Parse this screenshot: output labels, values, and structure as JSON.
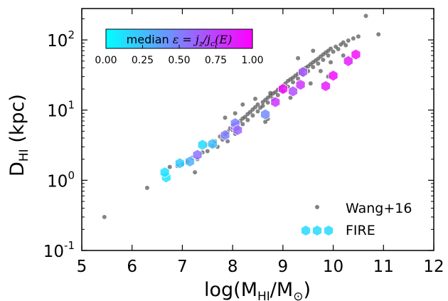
{
  "chart_data": {
    "type": "scatter",
    "xlabel": "log(M",
    "xlabel_sub": "HI",
    "xlabel_mid": "/M",
    "xlabel_sun": "⊙",
    "xlabel_end": ")",
    "ylabel": "D",
    "ylabel_sub": "HI",
    "ylabel_unit": " (kpc)",
    "xlim": [
      5,
      12
    ],
    "ylim": [
      0.1,
      280
    ],
    "yscale": "log",
    "x_ticks": [
      "5",
      "6",
      "7",
      "8",
      "9",
      "10",
      "11",
      "12"
    ],
    "y_ticks": [
      {
        "base": "10",
        "exp": "-1",
        "value": 0.1
      },
      {
        "base": "10",
        "exp": "0",
        "value": 1
      },
      {
        "base": "10",
        "exp": "1",
        "value": 10
      },
      {
        "base": "10",
        "exp": "2",
        "value": 100
      }
    ],
    "grid": false,
    "legend_position": "bottom-right",
    "colorbar": {
      "label_text": "median ",
      "label_math": "ε = j",
      "label_math_sub1": "z",
      "label_math_mid": "/j",
      "label_math_sub2": "c",
      "label_math_end": "(E)",
      "ticks": [
        "0.00",
        "0.25",
        "0.50",
        "0.75",
        "1.00"
      ],
      "range": [
        0,
        1
      ],
      "cmap_start": "#00ffff",
      "cmap_end": "#ff00ff"
    },
    "series": [
      {
        "name": "Wang+16",
        "marker": "circle",
        "color": "#555555",
        "points": [
          [
            5.45,
            0.3
          ],
          [
            6.3,
            0.78
          ],
          [
            6.75,
            1.55
          ],
          [
            6.9,
            1.6
          ],
          [
            7.0,
            1.7
          ],
          [
            7.1,
            1.85
          ],
          [
            7.2,
            2.1
          ],
          [
            7.3,
            2.0
          ],
          [
            7.4,
            2.5
          ],
          [
            7.5,
            2.6
          ],
          [
            7.5,
            3.2
          ],
          [
            7.6,
            3.1
          ],
          [
            7.65,
            3.6
          ],
          [
            7.7,
            3.0
          ],
          [
            7.75,
            4.2
          ],
          [
            7.8,
            3.8
          ],
          [
            7.85,
            4.5
          ],
          [
            7.9,
            4.9
          ],
          [
            7.9,
            3.6
          ],
          [
            7.95,
            5.5
          ],
          [
            8.0,
            5.2
          ],
          [
            8.0,
            6.1
          ],
          [
            8.05,
            4.6
          ],
          [
            8.1,
            6.5
          ],
          [
            8.1,
            5.6
          ],
          [
            8.15,
            7.0
          ],
          [
            8.2,
            6.3
          ],
          [
            8.2,
            7.6
          ],
          [
            8.25,
            8.0
          ],
          [
            8.3,
            7.2
          ],
          [
            8.3,
            8.8
          ],
          [
            8.35,
            9.4
          ],
          [
            8.4,
            8.4
          ],
          [
            8.4,
            10.2
          ],
          [
            8.45,
            11.0
          ],
          [
            8.5,
            9.6
          ],
          [
            8.5,
            12.0
          ],
          [
            8.55,
            10.8
          ],
          [
            8.6,
            13.0
          ],
          [
            8.6,
            11.5
          ],
          [
            8.65,
            14.0
          ],
          [
            8.7,
            12.8
          ],
          [
            8.7,
            15.0
          ],
          [
            8.75,
            16.0
          ],
          [
            8.8,
            14.5
          ],
          [
            8.8,
            17.2
          ],
          [
            8.85,
            18.0
          ],
          [
            8.9,
            16.3
          ],
          [
            8.9,
            19.5
          ],
          [
            8.95,
            21.0
          ],
          [
            9.0,
            18.8
          ],
          [
            9.0,
            22.5
          ],
          [
            9.05,
            24.0
          ],
          [
            9.1,
            21.5
          ],
          [
            9.1,
            26.0
          ],
          [
            9.15,
            27.5
          ],
          [
            9.2,
            25.0
          ],
          [
            9.2,
            29.0
          ],
          [
            9.25,
            31.0
          ],
          [
            9.3,
            28.0
          ],
          [
            9.3,
            33.0
          ],
          [
            9.35,
            35.0
          ],
          [
            9.4,
            32.0
          ],
          [
            9.4,
            37.5
          ],
          [
            9.45,
            40.0
          ],
          [
            9.5,
            36.0
          ],
          [
            9.5,
            42.0
          ],
          [
            9.55,
            45.0
          ],
          [
            9.6,
            41.0
          ],
          [
            9.6,
            48.0
          ],
          [
            9.65,
            51.0
          ],
          [
            9.7,
            46.0
          ],
          [
            9.7,
            54.0
          ],
          [
            9.75,
            58.0
          ],
          [
            9.8,
            52.0
          ],
          [
            9.8,
            62.0
          ],
          [
            9.85,
            66.0
          ],
          [
            9.9,
            60.0
          ],
          [
            9.9,
            70.0
          ],
          [
            9.95,
            75.0
          ],
          [
            10.0,
            68.0
          ],
          [
            10.05,
            80.0
          ],
          [
            10.1,
            74.0
          ],
          [
            10.15,
            86.0
          ],
          [
            10.2,
            92.0
          ],
          [
            10.25,
            84.0
          ],
          [
            10.3,
            98.0
          ],
          [
            10.4,
            105.0
          ],
          [
            10.5,
            112.0
          ],
          [
            8.65,
            6.8
          ],
          [
            8.7,
            7.5
          ],
          [
            8.05,
            9.0
          ],
          [
            7.25,
            1.3
          ],
          [
            8.75,
            17.5
          ],
          [
            9.15,
            15.0
          ],
          [
            9.55,
            24.0
          ],
          [
            9.9,
            30.0
          ],
          [
            10.65,
            220.0
          ],
          [
            10.9,
            120.0
          ],
          [
            9.3,
            55.0
          ],
          [
            9.6,
            70.0
          ],
          [
            8.45,
            14.5
          ],
          [
            8.2,
            12.0
          ],
          [
            7.85,
            7.8
          ],
          [
            9.95,
            48.0
          ],
          [
            10.2,
            60.0
          ],
          [
            9.75,
            36.0
          ]
        ]
      },
      {
        "name": "FIRE",
        "marker": "hexagon",
        "points": [
          {
            "x": 6.68,
            "y": 1.1,
            "e": 0.1
          },
          {
            "x": 6.65,
            "y": 1.3,
            "e": 0.12
          },
          {
            "x": 6.95,
            "y": 1.75,
            "e": 0.2
          },
          {
            "x": 7.15,
            "y": 1.85,
            "e": 0.3
          },
          {
            "x": 7.3,
            "y": 2.3,
            "e": 0.55
          },
          {
            "x": 7.4,
            "y": 3.2,
            "e": 0.15
          },
          {
            "x": 7.6,
            "y": 3.3,
            "e": 0.25
          },
          {
            "x": 7.85,
            "y": 4.4,
            "e": 0.5
          },
          {
            "x": 8.05,
            "y": 5.8,
            "e": 0.55
          },
          {
            "x": 8.05,
            "y": 6.5,
            "e": 0.5
          },
          {
            "x": 8.1,
            "y": 5.2,
            "e": 0.6
          },
          {
            "x": 8.65,
            "y": 8.7,
            "e": 0.45
          },
          {
            "x": 8.85,
            "y": 13.0,
            "e": 0.8
          },
          {
            "x": 9.0,
            "y": 20.0,
            "e": 0.95
          },
          {
            "x": 9.2,
            "y": 18.5,
            "e": 0.7
          },
          {
            "x": 9.35,
            "y": 23.0,
            "e": 0.8
          },
          {
            "x": 9.4,
            "y": 35.0,
            "e": 0.65
          },
          {
            "x": 9.85,
            "y": 22.0,
            "e": 0.9
          },
          {
            "x": 10.0,
            "y": 31.0,
            "e": 0.95
          },
          {
            "x": 10.3,
            "y": 50.0,
            "e": 0.9
          },
          {
            "x": 10.45,
            "y": 62.0,
            "e": 0.95
          }
        ]
      }
    ]
  }
}
